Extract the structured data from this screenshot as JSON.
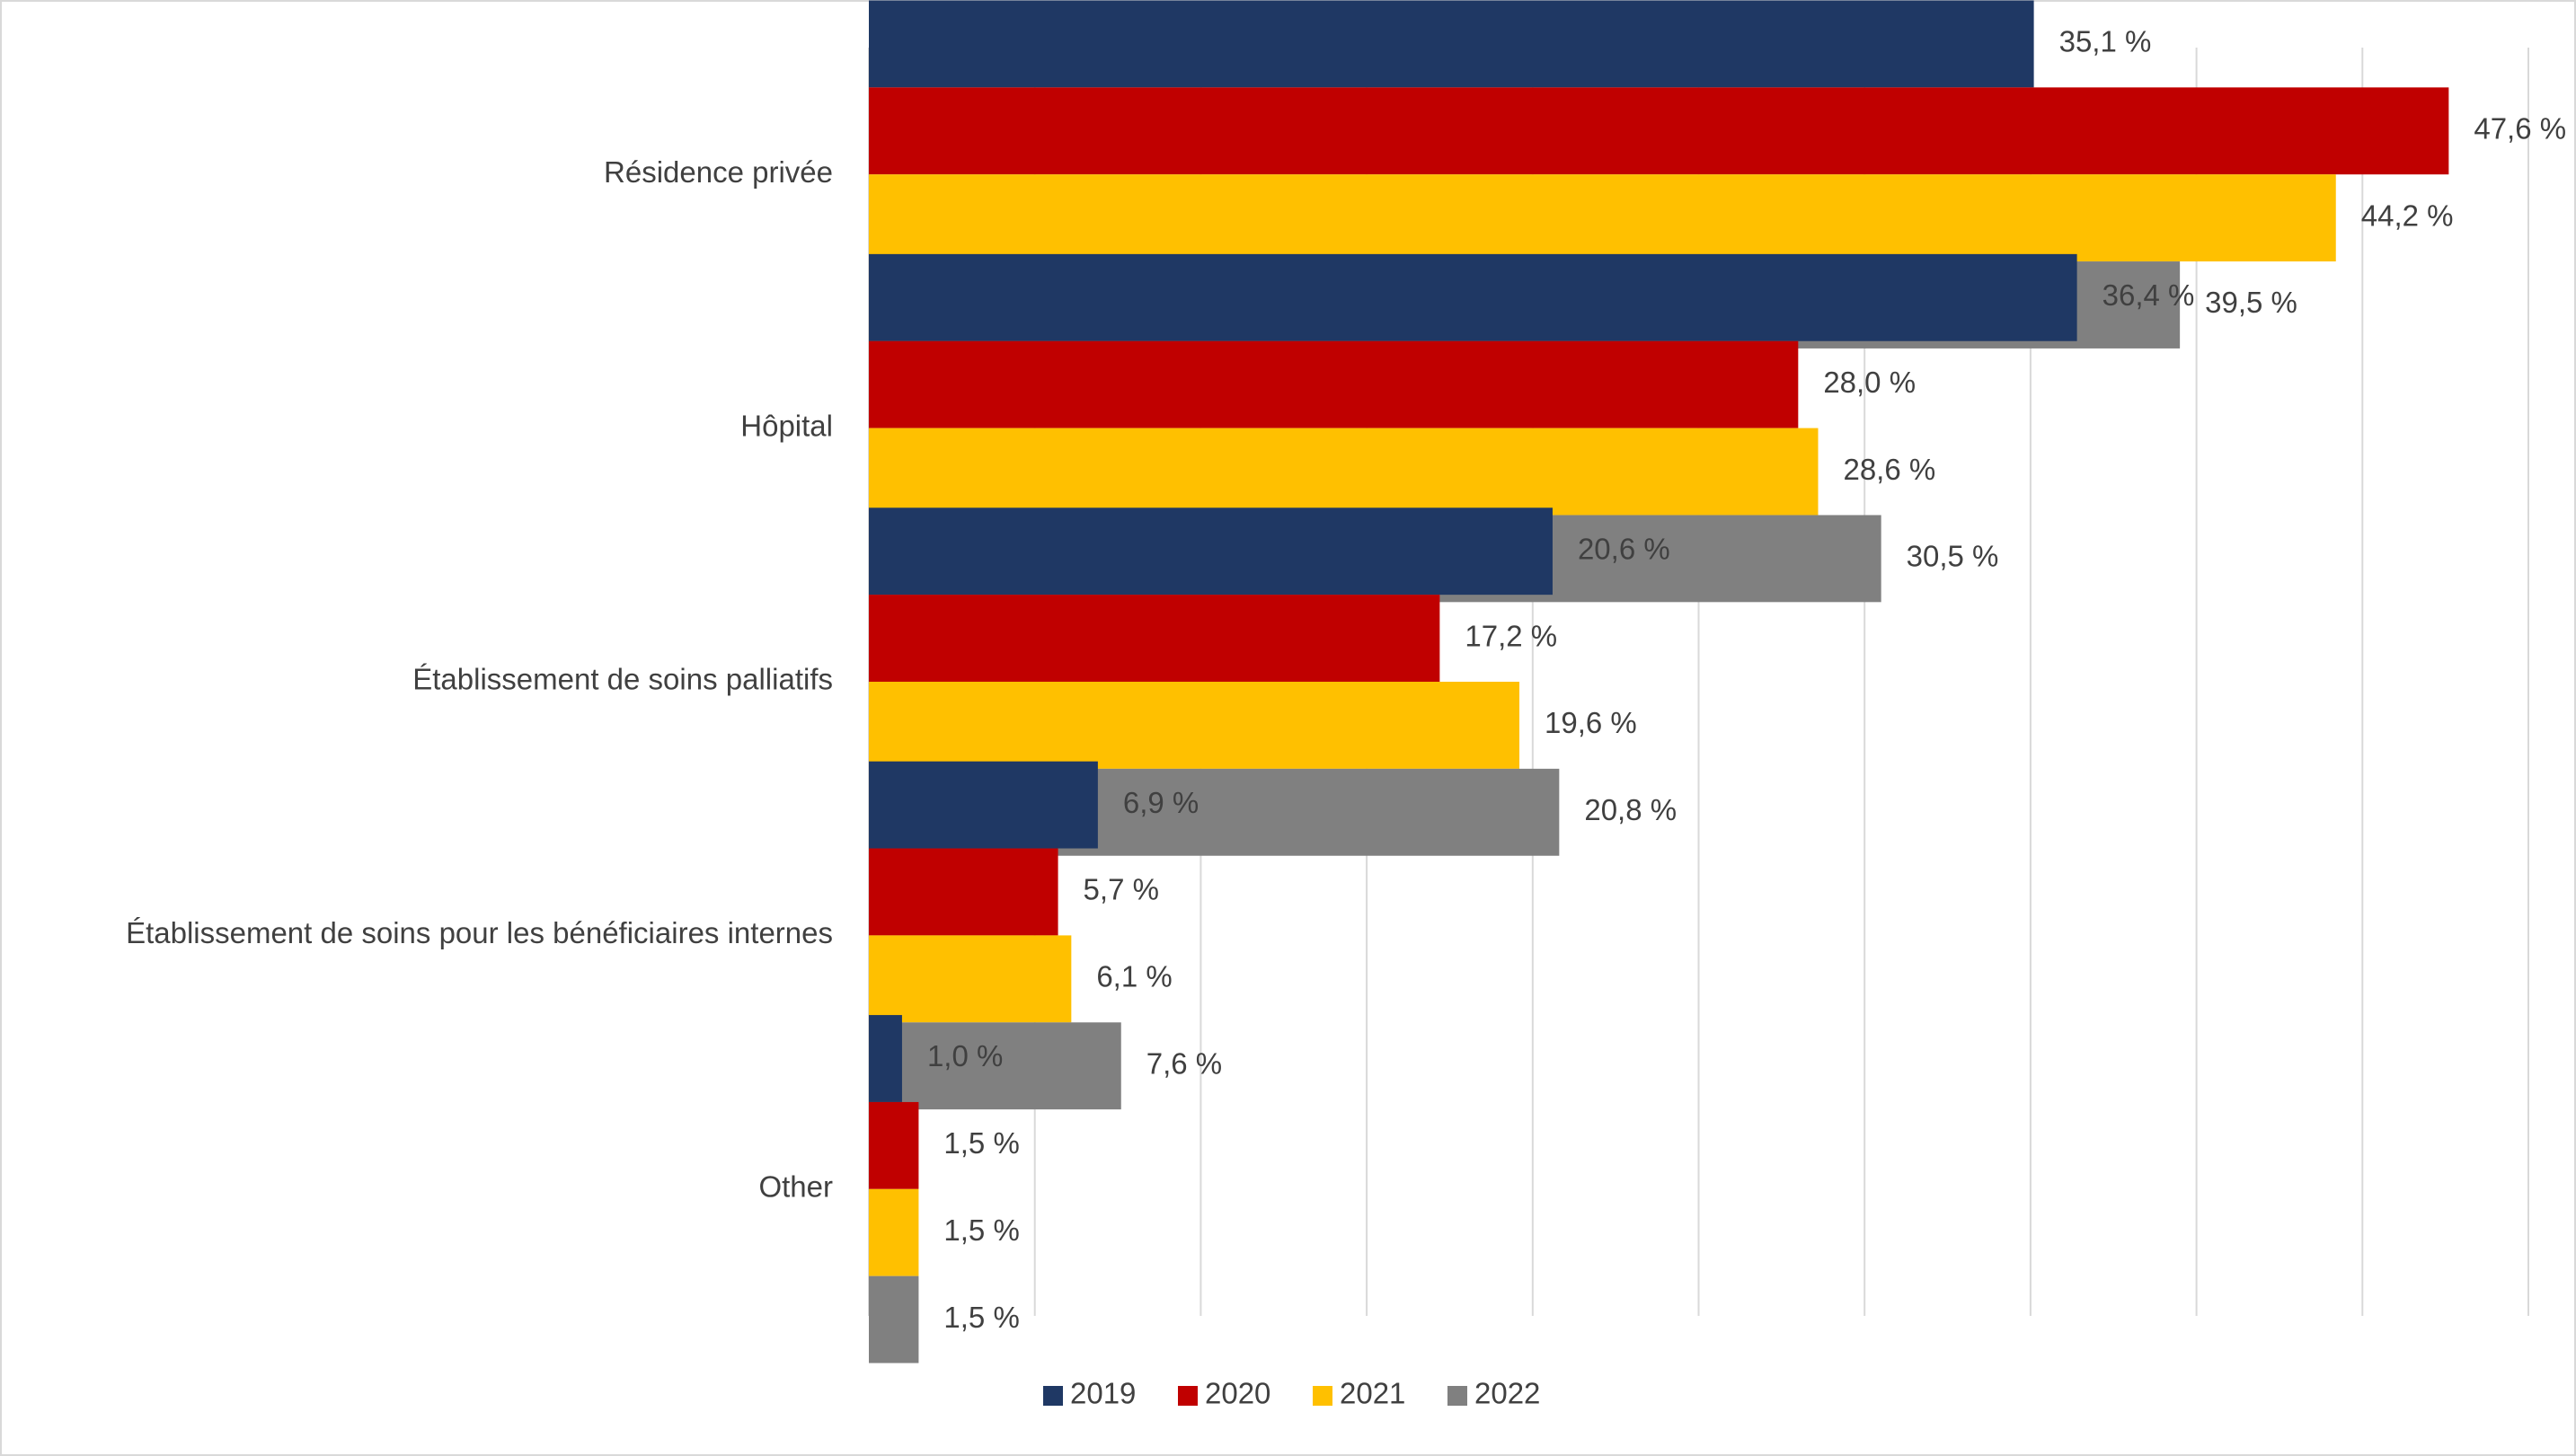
{
  "chart_data": {
    "type": "bar",
    "orientation": "horizontal",
    "categories": [
      "Résidence privée",
      "Hôpital",
      "Établissement de soins palliatifs",
      "Établissement de soins pour les bénéficiaires internes",
      "Other"
    ],
    "series": [
      {
        "name": "2019",
        "color": "#1f3864",
        "values": [
          35.1,
          36.4,
          20.6,
          6.9,
          1.0
        ],
        "value_labels": [
          "35,1 %",
          "36,4 %",
          "20,6 %",
          "6,9 %",
          "1,0 %"
        ]
      },
      {
        "name": "2020",
        "color": "#c00000",
        "values": [
          47.6,
          28.0,
          17.2,
          5.7,
          1.5
        ],
        "value_labels": [
          "47,6 %",
          "28,0 %",
          "17,2 %",
          "5,7 %",
          "1,5 %"
        ]
      },
      {
        "name": "2021",
        "color": "#ffc000",
        "values": [
          44.2,
          28.6,
          19.6,
          6.1,
          1.5
        ],
        "value_labels": [
          "44,2 %",
          "28,6 %",
          "19,6 %",
          "6,1 %",
          "1,5 %"
        ]
      },
      {
        "name": "2022",
        "color": "#808080",
        "values": [
          39.5,
          30.5,
          20.8,
          7.6,
          1.5
        ],
        "value_labels": [
          "39,5 %",
          "30,5 %",
          "20,8 %",
          "7,6 %",
          "1,5 %"
        ]
      }
    ],
    "xlim": [
      0,
      50
    ],
    "xticks": [
      0,
      5,
      10,
      15,
      20,
      25,
      30,
      35,
      40,
      45,
      50
    ],
    "grid": true,
    "legend": "bottom"
  }
}
